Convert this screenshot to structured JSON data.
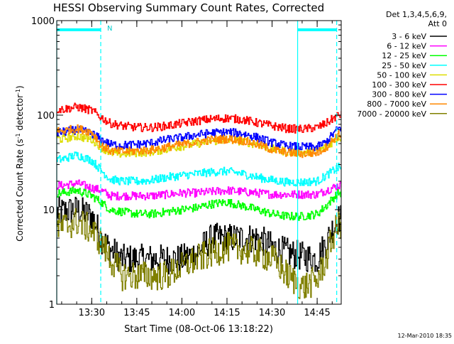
{
  "chart_data": {
    "type": "line",
    "title": "HESSI Observing Summary Count Rates, Corrected",
    "xlabel": "Start Time (08-Oct-06 13:18:22)",
    "ylabel_main": "Corrected Count Rate (s",
    "ylabel_sup1": "-1",
    "ylabel_mid": " detector",
    "ylabel_sup2": "-1",
    "ylabel_end": ")",
    "y_scale": "log",
    "ylim": [
      1,
      1000
    ],
    "xlim": [
      "13:18:22",
      "14:53:00"
    ],
    "x_ticks": [
      "13:30",
      "13:45",
      "14:00",
      "14:15",
      "14:30",
      "14:45"
    ],
    "y_ticks": [
      "1",
      "10",
      "100",
      "1000"
    ],
    "grid": false,
    "legend_title_1": "Det 1,3,4,5,6,9,",
    "legend_title_2": "Att 0",
    "legend_position": "right",
    "timestamp": "12-Mar-2010 18:35",
    "annotation_n": "N",
    "series": [
      {
        "name": "3 - 6 keV",
        "color": "#000000",
        "x": [
          "13:20",
          "13:25",
          "13:30",
          "13:33",
          "13:36",
          "13:40",
          "13:45",
          "13:50",
          "13:55",
          "14:00",
          "14:05",
          "14:10",
          "14:15",
          "14:20",
          "14:25",
          "14:30",
          "14:35",
          "14:40",
          "14:45",
          "14:48",
          "14:52"
        ],
        "values": [
          9.5,
          10,
          8.5,
          5,
          3.8,
          3,
          3,
          3,
          3,
          3,
          3.5,
          5,
          5,
          5,
          5,
          4,
          3.5,
          3.2,
          3,
          4.5,
          8
        ]
      },
      {
        "name": "6 - 12 keV",
        "color": "#ff00ff",
        "x": [
          "13:20",
          "13:25",
          "13:30",
          "13:33",
          "13:36",
          "13:40",
          "13:45",
          "13:50",
          "13:55",
          "14:00",
          "14:05",
          "14:10",
          "14:15",
          "14:20",
          "14:25",
          "14:30",
          "14:35",
          "14:40",
          "14:45",
          "14:48",
          "14:52"
        ],
        "values": [
          18,
          19,
          17,
          16,
          14,
          14,
          14,
          14,
          14.5,
          15,
          15,
          15.5,
          16,
          15.5,
          15,
          14.5,
          14.5,
          14.5,
          14.5,
          16,
          18
        ]
      },
      {
        "name": "12 - 25 keV",
        "color": "#00ff00",
        "x": [
          "13:20",
          "13:25",
          "13:30",
          "13:33",
          "13:36",
          "13:40",
          "13:45",
          "13:50",
          "13:55",
          "14:00",
          "14:05",
          "14:10",
          "14:15",
          "14:20",
          "14:25",
          "14:30",
          "14:35",
          "14:40",
          "14:45",
          "14:48",
          "14:52"
        ],
        "values": [
          15,
          16,
          14,
          12,
          10,
          9.5,
          9,
          9,
          9.5,
          10,
          10.5,
          11.5,
          12,
          11,
          10,
          9,
          8.5,
          8.5,
          9,
          11,
          15
        ]
      },
      {
        "name": "25 - 50 keV",
        "color": "#00ffff",
        "x": [
          "13:20",
          "13:25",
          "13:30",
          "13:33",
          "13:36",
          "13:40",
          "13:45",
          "13:50",
          "13:55",
          "14:00",
          "14:05",
          "14:10",
          "14:15",
          "14:20",
          "14:25",
          "14:30",
          "14:35",
          "14:40",
          "14:45",
          "14:48",
          "14:52"
        ],
        "values": [
          34,
          38,
          33,
          26,
          21,
          20,
          20,
          20.5,
          22,
          23,
          24,
          25,
          25.5,
          24,
          22,
          20.5,
          19.5,
          19.5,
          20,
          23,
          28
        ]
      },
      {
        "name": "50 - 100 keV",
        "color": "#dddd00",
        "x": [
          "13:20",
          "13:25",
          "13:30",
          "13:33",
          "13:36",
          "13:40",
          "13:45",
          "13:50",
          "13:55",
          "14:00",
          "14:05",
          "14:10",
          "14:15",
          "14:20",
          "14:25",
          "14:30",
          "14:35",
          "14:40",
          "14:45",
          "14:48",
          "14:52"
        ],
        "values": [
          56,
          60,
          55,
          46,
          40,
          39,
          40,
          41,
          44,
          47,
          50,
          53,
          55,
          53,
          49,
          44,
          41,
          40,
          41,
          46,
          58
        ]
      },
      {
        "name": "100 - 300 keV",
        "color": "#ff0000",
        "x": [
          "13:20",
          "13:25",
          "13:30",
          "13:33",
          "13:36",
          "13:40",
          "13:45",
          "13:50",
          "13:55",
          "14:00",
          "14:05",
          "14:10",
          "14:15",
          "14:20",
          "14:25",
          "14:30",
          "14:35",
          "14:40",
          "14:45",
          "14:48",
          "14:52"
        ],
        "values": [
          115,
          122,
          112,
          95,
          82,
          77,
          74,
          74,
          77,
          82,
          87,
          91,
          93,
          90,
          83,
          77,
          72,
          71,
          74,
          82,
          100
        ]
      },
      {
        "name": "300 - 800 keV",
        "color": "#0000ff",
        "x": [
          "13:20",
          "13:25",
          "13:30",
          "13:33",
          "13:36",
          "13:40",
          "13:45",
          "13:50",
          "13:55",
          "14:00",
          "14:05",
          "14:10",
          "14:15",
          "14:20",
          "14:25",
          "14:30",
          "14:35",
          "14:40",
          "14:45",
          "14:48",
          "14:52"
        ],
        "values": [
          66,
          70,
          64,
          55,
          49,
          48,
          49,
          51,
          55,
          58,
          62,
          65,
          66,
          64,
          58,
          51,
          47,
          46,
          46,
          52,
          72
        ]
      },
      {
        "name": "800 - 7000 keV",
        "color": "#ff8800",
        "x": [
          "13:20",
          "13:25",
          "13:30",
          "13:33",
          "13:36",
          "13:40",
          "13:45",
          "13:50",
          "13:55",
          "14:00",
          "14:05",
          "14:10",
          "14:15",
          "14:20",
          "14:25",
          "14:30",
          "14:35",
          "14:40",
          "14:45",
          "14:48",
          "14:52"
        ],
        "values": [
          68,
          72,
          66,
          48,
          42,
          41,
          42,
          43,
          46,
          49,
          52,
          55,
          56,
          54,
          49,
          43,
          40,
          39,
          40,
          46,
          62
        ]
      },
      {
        "name": "7000 - 20000 keV",
        "color": "#808000",
        "x": [
          "13:20",
          "13:25",
          "13:30",
          "13:33",
          "13:36",
          "13:40",
          "13:45",
          "13:50",
          "13:55",
          "14:00",
          "14:05",
          "14:10",
          "14:15",
          "14:20",
          "14:25",
          "14:30",
          "14:35",
          "14:40",
          "14:45",
          "14:48",
          "14:52"
        ],
        "values": [
          6.5,
          7.5,
          6,
          4.5,
          3,
          2,
          2,
          2,
          2,
          2.5,
          3,
          3.5,
          4,
          3.8,
          3.5,
          3,
          2,
          1.5,
          1.8,
          3,
          7
        ]
      }
    ],
    "verticals": [
      {
        "x": "13:18:22",
        "color": "#00ffff",
        "style": "solid"
      },
      {
        "x": "13:33:00",
        "color": "#00ffff",
        "style": "dashed"
      },
      {
        "x": "14:38:30",
        "color": "#00ffff",
        "style": "solid"
      },
      {
        "x": "14:51:30",
        "color": "#00ffff",
        "style": "dashed"
      }
    ],
    "top_bars": [
      {
        "x_start": "13:18:22",
        "x_end": "13:33:00",
        "y": 800,
        "color": "#00ffff"
      },
      {
        "x_start": "14:38:30",
        "x_end": "14:51:30",
        "y": 800,
        "color": "#00ffff"
      }
    ]
  }
}
